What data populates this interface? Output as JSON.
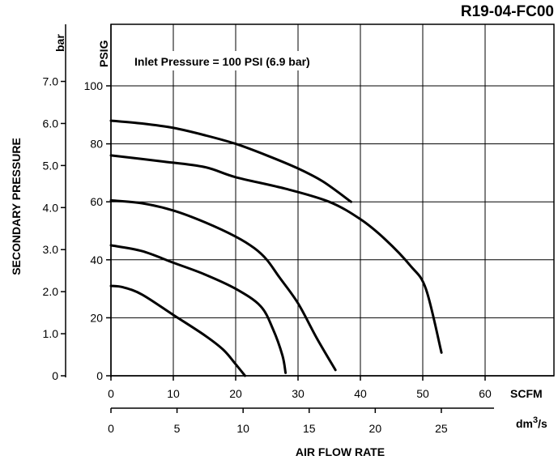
{
  "chart_data": {
    "type": "line",
    "model": "R19-04-FC00",
    "annotation": "Inlet Pressure = 100 PSI (6.9 bar)",
    "ylabel": "SECONDARY PRESSURE",
    "xlabel": "AIR FLOW RATE",
    "x_primary": {
      "unit": "SCFM",
      "ticks": [
        "0",
        "10",
        "20",
        "30",
        "40",
        "50",
        "60"
      ],
      "range": [
        0,
        65
      ]
    },
    "x_secondary": {
      "unit": "dm3/s",
      "unit_base": "dm",
      "unit_exp": "3",
      "unit_tail": "/s",
      "ticks": [
        "0",
        "5",
        "10",
        "15",
        "20",
        "25"
      ]
    },
    "y_primary": {
      "unit": "PSIG",
      "ticks": [
        "0",
        "20",
        "40",
        "60",
        "80",
        "100"
      ],
      "range": [
        0,
        100
      ]
    },
    "y_secondary": {
      "unit": "bar",
      "ticks": [
        "0",
        "1.0",
        "2.0",
        "3.0",
        "4.0",
        "5.0",
        "6.0",
        "7.0"
      ]
    },
    "grid": true,
    "series": [
      {
        "x": [
          0,
          5,
          10,
          15,
          20,
          25,
          30,
          34,
          38.5
        ],
        "y": [
          88,
          87,
          85.5,
          83,
          80,
          76,
          71.5,
          67,
          60
        ]
      },
      {
        "x": [
          0,
          8,
          15,
          20,
          28,
          35,
          40,
          44,
          48,
          50.5,
          53
        ],
        "y": [
          76,
          74,
          72,
          68.5,
          64.5,
          60,
          54,
          47,
          38,
          30,
          8
        ]
      },
      {
        "x": [
          0,
          5,
          10,
          15,
          20,
          23,
          25,
          27,
          30,
          33,
          36
        ],
        "y": [
          60.5,
          59.5,
          57,
          53,
          48,
          44,
          40,
          34,
          25,
          13,
          2
        ]
      },
      {
        "x": [
          0,
          5,
          10,
          15,
          20,
          24,
          26,
          27.5,
          28
        ],
        "y": [
          45,
          43,
          39,
          35,
          30,
          24,
          16,
          7,
          1
        ]
      },
      {
        "x": [
          0,
          2,
          5,
          10,
          15,
          18,
          20,
          21.5
        ],
        "y": [
          31,
          30.5,
          28,
          21,
          14,
          9,
          4,
          0
        ]
      }
    ]
  }
}
